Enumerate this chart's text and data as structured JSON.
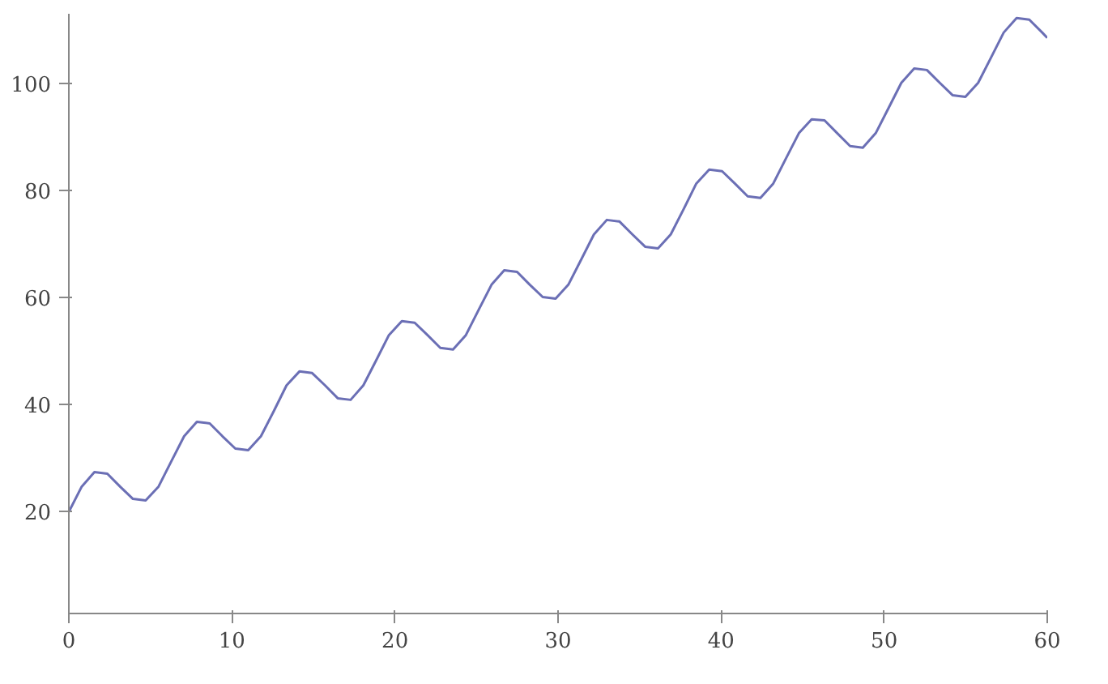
{
  "chart_data": {
    "type": "line",
    "xlim": [
      0,
      60
    ],
    "ylim": [
      1,
      113
    ],
    "xticks": [
      0,
      10,
      20,
      30,
      40,
      50,
      60
    ],
    "yticks": [
      20,
      40,
      60,
      80,
      100
    ],
    "grid": false,
    "marker": "none",
    "line_style": "solid",
    "series": [
      {
        "color": "#6b6fb5",
        "x": [
          0,
          0.79,
          1.57,
          2.36,
          3.14,
          3.93,
          4.71,
          5.5,
          6.28,
          7.07,
          7.85,
          8.64,
          9.42,
          10.21,
          11.0,
          11.78,
          12.57,
          13.35,
          14.14,
          14.92,
          15.71,
          16.49,
          17.28,
          18.06,
          18.85,
          19.63,
          20.42,
          21.21,
          21.99,
          22.78,
          23.56,
          24.35,
          25.13,
          25.92,
          26.7,
          27.49,
          28.27,
          29.06,
          29.85,
          30.63,
          31.42,
          32.2,
          32.99,
          33.77,
          34.56,
          35.34,
          36.13,
          36.91,
          37.7,
          38.48,
          39.27,
          40.06,
          40.84,
          41.63,
          42.41,
          43.2,
          43.98,
          44.77,
          45.55,
          46.34,
          47.12,
          47.91,
          48.69,
          49.48,
          50.27,
          51.05,
          51.84,
          52.62,
          53.41,
          54.19,
          54.98,
          55.76,
          56.55,
          57.33,
          58.12,
          58.9,
          59.69,
          60
        ],
        "values": [
          20.0,
          24.7,
          27.4,
          27.1,
          24.7,
          22.4,
          22.1,
          24.7,
          29.4,
          34.1,
          36.8,
          36.5,
          34.1,
          31.8,
          31.5,
          34.1,
          38.8,
          43.6,
          46.2,
          45.9,
          43.6,
          41.2,
          40.9,
          43.6,
          48.3,
          53.0,
          55.6,
          55.3,
          53.0,
          50.6,
          50.3,
          53.0,
          57.7,
          62.4,
          65.1,
          64.8,
          62.4,
          60.1,
          59.8,
          62.4,
          67.1,
          71.8,
          74.5,
          74.2,
          71.8,
          69.5,
          69.2,
          71.8,
          76.5,
          81.3,
          83.9,
          83.6,
          81.3,
          78.9,
          78.6,
          81.3,
          86.0,
          90.7,
          93.3,
          93.1,
          90.7,
          88.3,
          88.0,
          90.7,
          95.4,
          100.1,
          102.8,
          102.5,
          100.1,
          97.8,
          97.5,
          100.1,
          104.8,
          109.5,
          112.2,
          111.9,
          109.5,
          108.5
        ]
      }
    ]
  }
}
